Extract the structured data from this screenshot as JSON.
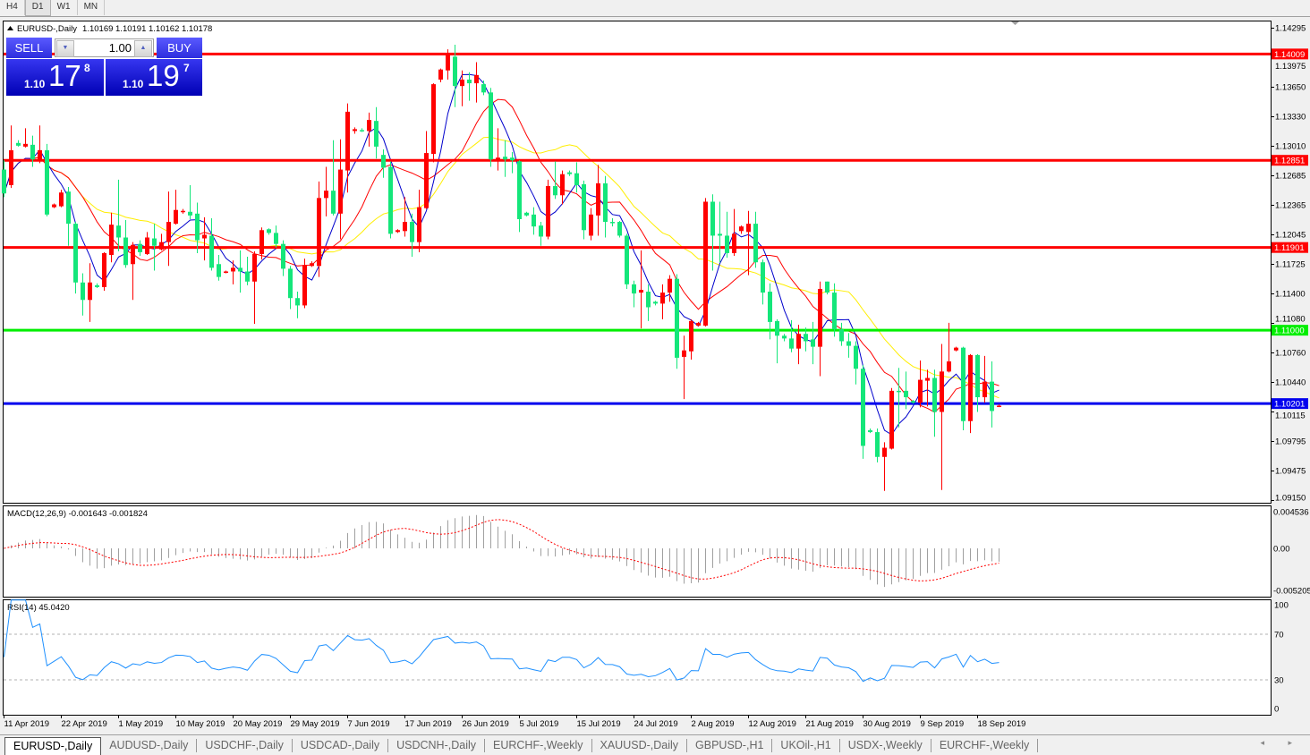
{
  "toolbar": {
    "timeframes": [
      "H4",
      "D1",
      "W1",
      "MN"
    ],
    "active": "D1"
  },
  "chart": {
    "title": "EURUSD-,Daily",
    "ohlc": "1.10169 1.10191 1.10162 1.10178",
    "colors": {
      "bull": "#ff0000",
      "bear": "#14e67a",
      "ma_fast": "#0000cc",
      "ma_mid": "#ff0000",
      "ma_slow": "#ffee00",
      "background": "#ffffff"
    }
  },
  "trade_panel": {
    "sell_label": "SELL",
    "buy_label": "BUY",
    "lot": "1.00",
    "sell_price": {
      "prefix": "1.10",
      "big": "17",
      "small": "8"
    },
    "buy_price": {
      "prefix": "1.10",
      "big": "19",
      "small": "7"
    }
  },
  "chart_data": {
    "type": "candlestick",
    "ylim": [
      1.0915,
      1.14295
    ],
    "y_ticks": [
      "1.14295",
      "1.13975",
      "1.13650",
      "1.13330",
      "1.13010",
      "1.12685",
      "1.12365",
      "1.12045",
      "1.11725",
      "1.11400",
      "1.11080",
      "1.10760",
      "1.10440",
      "1.10115",
      "1.09795",
      "1.09475",
      "1.09150"
    ],
    "x_labels": [
      "11 Apr 2019",
      "22 Apr 2019",
      "1 May 2019",
      "10 May 2019",
      "20 May 2019",
      "29 May 2019",
      "7 Jun 2019",
      "17 Jun 2019",
      "26 Jun 2019",
      "5 Jul 2019",
      "15 Jul 2019",
      "24 Jul 2019",
      "2 Aug 2019",
      "12 Aug 2019",
      "21 Aug 2019",
      "30 Aug 2019",
      "9 Sep 2019",
      "18 Sep 2019"
    ],
    "hlines": [
      {
        "price": "1.14009",
        "color": "#ff0000"
      },
      {
        "price": "1.12851",
        "color": "#ff0000"
      },
      {
        "price": "1.11901",
        "color": "#ff0000"
      },
      {
        "price": "1.11000",
        "color": "#00ee00"
      },
      {
        "price": "1.10201",
        "color": "#0000ee"
      }
    ],
    "candles_ohlc": [
      [
        1.1275,
        1.1285,
        1.1245,
        1.1249
      ],
      [
        1.1258,
        1.1323,
        1.1255,
        1.1296
      ],
      [
        1.1304,
        1.1307,
        1.13,
        1.1301
      ],
      [
        1.13,
        1.132,
        1.1299,
        1.1303
      ],
      [
        1.1302,
        1.1312,
        1.1278,
        1.1286
      ],
      [
        1.1284,
        1.1323,
        1.1282,
        1.1296
      ],
      [
        1.1296,
        1.1303,
        1.1224,
        1.1226
      ],
      [
        1.1234,
        1.1238,
        1.1233,
        1.1237
      ],
      [
        1.1235,
        1.1253,
        1.1234,
        1.125
      ],
      [
        1.1251,
        1.1256,
        1.1192,
        1.1216
      ],
      [
        1.1216,
        1.1218,
        1.114,
        1.1152
      ],
      [
        1.1152,
        1.1162,
        1.1116,
        1.1133
      ],
      [
        1.1133,
        1.1173,
        1.1109,
        1.1152
      ],
      [
        1.1149,
        1.1151,
        1.1146,
        1.1147
      ],
      [
        1.1147,
        1.1185,
        1.1143,
        1.1184
      ],
      [
        1.1182,
        1.1228,
        1.1174,
        1.1215
      ],
      [
        1.1214,
        1.1264,
        1.1186,
        1.1201
      ],
      [
        1.1201,
        1.122,
        1.1168,
        1.1171
      ],
      [
        1.1172,
        1.1196,
        1.1133,
        1.1193
      ],
      [
        1.1194,
        1.1198,
        1.1181,
        1.1185
      ],
      [
        1.1183,
        1.1207,
        1.1182,
        1.1201
      ],
      [
        1.12,
        1.1216,
        1.1165,
        1.1192
      ],
      [
        1.1188,
        1.1205,
        1.1187,
        1.1196
      ],
      [
        1.1196,
        1.1251,
        1.117,
        1.1218
      ],
      [
        1.1216,
        1.1253,
        1.1215,
        1.1231
      ],
      [
        1.1229,
        1.1232,
        1.1227,
        1.123
      ],
      [
        1.1229,
        1.1258,
        1.1221,
        1.1225
      ],
      [
        1.1227,
        1.1239,
        1.1184,
        1.1198
      ],
      [
        1.12,
        1.1223,
        1.1176,
        1.1204
      ],
      [
        1.1203,
        1.1222,
        1.1165,
        1.1168
      ],
      [
        1.1172,
        1.1182,
        1.1154,
        1.1158
      ],
      [
        1.1163,
        1.1165,
        1.1162,
        1.1164
      ],
      [
        1.1164,
        1.1176,
        1.115,
        1.1168
      ],
      [
        1.1168,
        1.1187,
        1.1141,
        1.1164
      ],
      [
        1.1164,
        1.118,
        1.1149,
        1.1153
      ],
      [
        1.1153,
        1.1186,
        1.1107,
        1.1183
      ],
      [
        1.1183,
        1.1212,
        1.1177,
        1.1209
      ],
      [
        1.121,
        1.1211,
        1.1204,
        1.1206
      ],
      [
        1.1206,
        1.1214,
        1.119,
        1.1194
      ],
      [
        1.1194,
        1.1198,
        1.1159,
        1.1167
      ],
      [
        1.1167,
        1.117,
        1.1123,
        1.1135
      ],
      [
        1.1135,
        1.1142,
        1.1113,
        1.1127
      ],
      [
        1.1127,
        1.1178,
        1.1124,
        1.1171
      ],
      [
        1.117,
        1.1175,
        1.1169,
        1.1173
      ],
      [
        1.117,
        1.1262,
        1.1158,
        1.1244
      ],
      [
        1.1244,
        1.1278,
        1.1224,
        1.1252
      ],
      [
        1.1252,
        1.1307,
        1.1225,
        1.1227
      ],
      [
        1.1227,
        1.1308,
        1.1199,
        1.1275
      ],
      [
        1.1274,
        1.1347,
        1.125,
        1.1338
      ],
      [
        1.1317,
        1.1321,
        1.1314,
        1.1319
      ],
      [
        1.1318,
        1.132,
        1.1316,
        1.1317
      ],
      [
        1.1317,
        1.1337,
        1.13,
        1.1329
      ],
      [
        1.1328,
        1.1343,
        1.1287,
        1.13
      ],
      [
        1.1291,
        1.1297,
        1.1266,
        1.1277
      ],
      [
        1.1278,
        1.1284,
        1.12,
        1.1205
      ],
      [
        1.1207,
        1.121,
        1.1206,
        1.1209
      ],
      [
        1.1208,
        1.1245,
        1.1202,
        1.1218
      ],
      [
        1.1218,
        1.1227,
        1.118,
        1.1196
      ],
      [
        1.1196,
        1.1253,
        1.1185,
        1.1234
      ],
      [
        1.1233,
        1.1317,
        1.1232,
        1.1293
      ],
      [
        1.1292,
        1.1369,
        1.1283,
        1.1368
      ],
      [
        1.1373,
        1.1385,
        1.137,
        1.1384
      ],
      [
        1.1383,
        1.1406,
        1.1373,
        1.1401
      ],
      [
        1.1398,
        1.1411,
        1.1343,
        1.1366
      ],
      [
        1.1366,
        1.1383,
        1.1344,
        1.1373
      ],
      [
        1.1373,
        1.1381,
        1.135,
        1.1369
      ],
      [
        1.1369,
        1.1392,
        1.1348,
        1.1378
      ],
      [
        1.1368,
        1.1372,
        1.1356,
        1.1359
      ],
      [
        1.1359,
        1.1364,
        1.1278,
        1.1286
      ],
      [
        1.1284,
        1.132,
        1.1274,
        1.1288
      ],
      [
        1.1289,
        1.1307,
        1.1267,
        1.1286
      ],
      [
        1.1288,
        1.1294,
        1.1271,
        1.1285
      ],
      [
        1.1284,
        1.1285,
        1.1207,
        1.1221
      ],
      [
        1.1228,
        1.1229,
        1.1224,
        1.1225
      ],
      [
        1.1226,
        1.1234,
        1.1204,
        1.1213
      ],
      [
        1.1214,
        1.1218,
        1.1192,
        1.1202
      ],
      [
        1.1202,
        1.1264,
        1.1199,
        1.1257
      ],
      [
        1.1257,
        1.1284,
        1.1243,
        1.1247
      ],
      [
        1.1247,
        1.1274,
        1.1237,
        1.127
      ],
      [
        1.1272,
        1.1274,
        1.1268,
        1.127
      ],
      [
        1.1271,
        1.1283,
        1.125,
        1.1258
      ],
      [
        1.1259,
        1.1263,
        1.1199,
        1.1209
      ],
      [
        1.1203,
        1.1233,
        1.1198,
        1.1226
      ],
      [
        1.1225,
        1.128,
        1.1203,
        1.126
      ],
      [
        1.126,
        1.1268,
        1.1201,
        1.1218
      ],
      [
        1.1218,
        1.1222,
        1.1213,
        1.1217
      ],
      [
        1.1218,
        1.1219,
        1.1201,
        1.1203
      ],
      [
        1.1203,
        1.1205,
        1.1145,
        1.115
      ],
      [
        1.115,
        1.1154,
        1.1125,
        1.114
      ],
      [
        1.1141,
        1.1187,
        1.1102,
        1.1144
      ],
      [
        1.1142,
        1.115,
        1.111,
        1.1125
      ],
      [
        1.1131,
        1.1132,
        1.1127,
        1.1129
      ],
      [
        1.1129,
        1.115,
        1.1112,
        1.1141
      ],
      [
        1.1141,
        1.116,
        1.1131,
        1.1156
      ],
      [
        1.1156,
        1.1161,
        1.1058,
        1.107
      ],
      [
        1.1071,
        1.1094,
        1.1025,
        1.1078
      ],
      [
        1.1077,
        1.1112,
        1.1068,
        1.111
      ],
      [
        1.1105,
        1.1109,
        1.1104,
        1.1108
      ],
      [
        1.1105,
        1.1244,
        1.1104,
        1.124
      ],
      [
        1.124,
        1.1248,
        1.1165,
        1.1203
      ],
      [
        1.1205,
        1.124,
        1.1174,
        1.1203
      ],
      [
        1.1203,
        1.1229,
        1.1179,
        1.1184
      ],
      [
        1.1184,
        1.1232,
        1.1181,
        1.1205
      ],
      [
        1.1208,
        1.1214,
        1.1205,
        1.1213
      ],
      [
        1.1207,
        1.123,
        1.116,
        1.1216
      ],
      [
        1.1216,
        1.1229,
        1.1168,
        1.1174
      ],
      [
        1.1174,
        1.1177,
        1.1128,
        1.1141
      ],
      [
        1.1142,
        1.1151,
        1.109,
        1.1109
      ],
      [
        1.111,
        1.1112,
        1.1064,
        1.1094
      ],
      [
        1.1094,
        1.1096,
        1.1088,
        1.1091
      ],
      [
        1.1091,
        1.1111,
        1.1076,
        1.108
      ],
      [
        1.108,
        1.1106,
        1.1063,
        1.1096
      ],
      [
        1.1096,
        1.1103,
        1.1077,
        1.1088
      ],
      [
        1.109,
        1.1109,
        1.1063,
        1.1082
      ],
      [
        1.1082,
        1.1153,
        1.105,
        1.1145
      ],
      [
        1.1153,
        1.1153,
        1.1139,
        1.1141
      ],
      [
        1.1141,
        1.1151,
        1.1093,
        1.1101
      ],
      [
        1.1101,
        1.1108,
        1.1083,
        1.1088
      ],
      [
        1.1088,
        1.1097,
        1.107,
        1.1083
      ],
      [
        1.1083,
        1.1088,
        1.1041,
        1.1058
      ],
      [
        1.1058,
        1.1062,
        1.096,
        1.0974
      ],
      [
        1.0991,
        1.0993,
        1.0988,
        1.0989
      ],
      [
        1.0989,
        1.0993,
        1.0956,
        1.0962
      ],
      [
        1.0962,
        1.0978,
        1.0925,
        1.0972
      ],
      [
        1.0971,
        1.1037,
        1.097,
        1.1034
      ],
      [
        1.1034,
        1.1059,
        1.0994,
        1.1033
      ],
      [
        1.1034,
        1.1055,
        1.1014,
        1.1027
      ],
      [
        1.1023,
        1.1024,
        1.102,
        1.1021
      ],
      [
        1.1021,
        1.1067,
        1.1016,
        1.1046
      ],
      [
        1.1045,
        1.1057,
        1.1017,
        1.1048
      ],
      [
        1.1048,
        1.1057,
        1.0984,
        1.1011
      ],
      [
        1.1011,
        1.1085,
        1.0926,
        1.1055
      ],
      [
        1.1055,
        1.1108,
        1.1054,
        1.1066
      ],
      [
        1.1078,
        1.1082,
        1.1077,
        1.1081
      ],
      [
        1.1081,
        1.1082,
        1.0991,
        1.1001
      ],
      [
        1.1001,
        1.1074,
        1.0988,
        1.1073
      ],
      [
        1.1073,
        1.1074,
        1.1011,
        1.1027
      ],
      [
        1.1027,
        1.1072,
        1.1021,
        1.1044
      ],
      [
        1.1044,
        1.1066,
        1.0994,
        1.1012
      ],
      [
        1.10169,
        1.10191,
        1.10162,
        1.10178
      ]
    ]
  },
  "macd": {
    "label": "MACD(12,26,9) -0.001643 -0.001824",
    "ticks": [
      "0.004536",
      "0.00",
      "-0.005205"
    ],
    "ylim": [
      -0.005205,
      0.004536
    ],
    "hist_color": "#a0a0a0",
    "signal_color": "#ff0000"
  },
  "rsi": {
    "label": "RSI(14) 45.0420",
    "ticks": [
      "100",
      "70",
      "30",
      "0"
    ],
    "levels": [
      70,
      30
    ],
    "line_color": "#1e90ff"
  },
  "tabs": [
    "EURUSD-,Daily",
    "AUDUSD-,Daily",
    "USDCHF-,Daily",
    "USDCAD-,Daily",
    "USDCNH-,Daily",
    "EURCHF-,Weekly",
    "XAUUSD-,Daily",
    "GBPUSD-,H1",
    "UKOil-,H1",
    "USDX-,Weekly",
    "EURCHF-,Weekly"
  ],
  "tab_scroll": "◂ ▸"
}
